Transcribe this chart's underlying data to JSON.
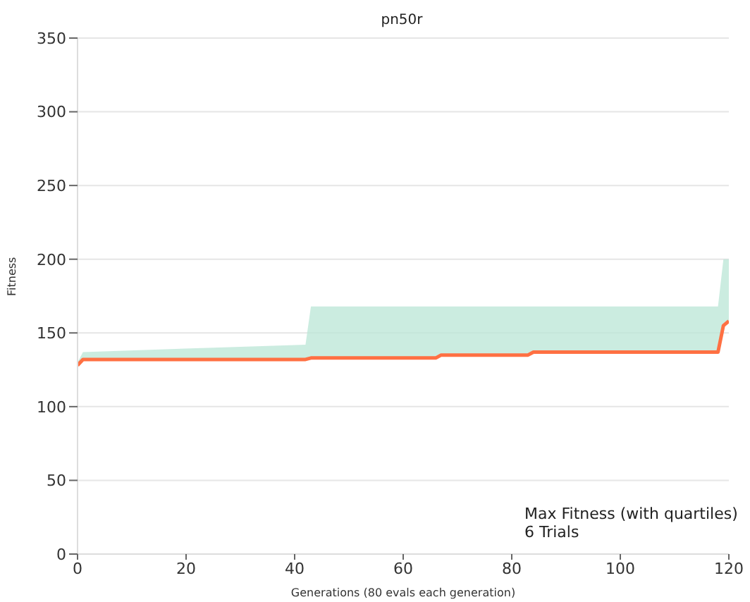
{
  "chart_data": {
    "type": "line",
    "title": "pn50r",
    "xlabel": "Generations (80 evals each generation)",
    "ylabel": "Fitness",
    "x": [
      0,
      1,
      25,
      42,
      43,
      66,
      67,
      83,
      84,
      118,
      119,
      120
    ],
    "series": [
      {
        "color": "#ff7043",
        "values": [
          128,
          132,
          132,
          132,
          133,
          133,
          135,
          135,
          137,
          137,
          155,
          158
        ],
        "lower": [
          128,
          132,
          132,
          132,
          133,
          133,
          135,
          135,
          137,
          137,
          155,
          158
        ],
        "upper": [
          130,
          137,
          140,
          142,
          168,
          168,
          168,
          168,
          168,
          168,
          200,
          200
        ]
      }
    ],
    "xlim": [
      0,
      120
    ],
    "xticks": [
      0,
      20,
      40,
      60,
      80,
      100,
      120
    ],
    "ylim": [
      0,
      350
    ],
    "yticks": [
      0,
      50,
      100,
      150,
      200,
      250,
      300,
      350
    ],
    "grid": "y",
    "marker": "none",
    "line_style": "solid",
    "annotations": [
      "Max Fitness (with quartiles)",
      "6 Trials"
    ]
  }
}
